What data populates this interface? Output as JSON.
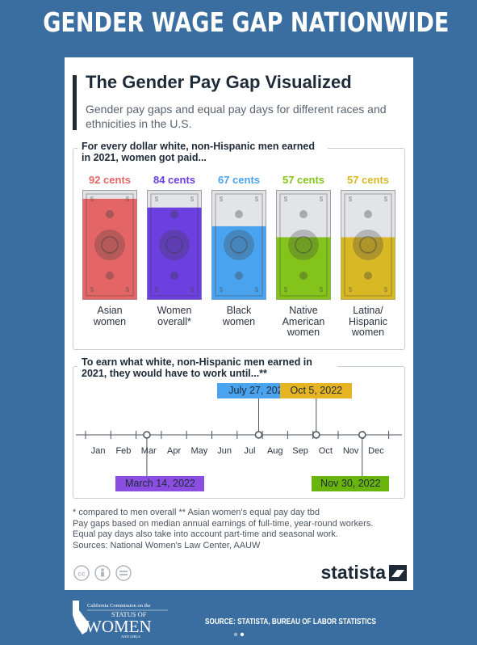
{
  "banner": "GENDER WAGE GAP NATIONWIDE",
  "card": {
    "title": "The Gender Pay Gap Visualized",
    "subtitle": "Gender pay gaps and equal pay days for different races and ethnicities in the U.S.",
    "section1_heading": "For every dollar white, non-Hispanic men earned in 2021, women got paid...",
    "section2_heading": "To earn what white, non-Hispanic men earned in 2021, they would have to work until...**",
    "footnotes": [
      "* compared to men overall   ** Asian women's equal pay day tbd",
      "Pay gaps based on median annual earnings of full-time, year-round workers.",
      "Equal pay days also take into account part-time and seasonal work.",
      "Sources: National Women's Law Center, AAUW"
    ],
    "brand": "statista"
  },
  "footer": {
    "org_line1": "California Commission on the",
    "org_line2": "STATUS OF",
    "org_line3": "WOMEN",
    "org_line4": "AND GIRLS",
    "source": "SOURCE: STATISTA, BUREAU OF LABOR STATISTICS"
  },
  "colors": {
    "background": "#3a6ea0",
    "asian": "#e36565",
    "overall": "#6b3fe0",
    "black": "#4aa3ee",
    "native": "#84c41a",
    "latina": "#d8b824"
  },
  "chart_data": [
    {
      "type": "bar",
      "categories": [
        "Asian women",
        "Women overall*",
        "Black women",
        "Native American women",
        "Latina/ Hispanic women"
      ],
      "category_lines": [
        [
          "Asian",
          "women"
        ],
        [
          "Women",
          "overall*"
        ],
        [
          "Black",
          "women"
        ],
        [
          "Native",
          "American",
          "women"
        ],
        [
          "Latina/",
          "Hispanic",
          "women"
        ]
      ],
      "values": [
        92,
        84,
        67,
        57,
        57
      ],
      "value_labels": [
        "92 cents",
        "84 cents",
        "67 cents",
        "57 cents",
        "57 cents"
      ],
      "colors": [
        "#e36565",
        "#6b3fe0",
        "#4aa3ee",
        "#84c41a",
        "#d8b824"
      ],
      "ylim": [
        0,
        100
      ]
    },
    {
      "type": "scatter",
      "xlabels": [
        "Jan",
        "Feb",
        "Mar",
        "Apr",
        "May",
        "Jun",
        "Jul",
        "Aug",
        "Sep",
        "Oct",
        "Nov",
        "Dec"
      ],
      "points": [
        {
          "label": "March 14, 2022",
          "month": 3,
          "day": 14,
          "color": "#8a4ee0",
          "position": "below"
        },
        {
          "label": "July 27, 2022",
          "month": 7,
          "day": 27,
          "color": "#4aa3ee",
          "position": "above"
        },
        {
          "label": "Oct 5, 2022",
          "month": 10,
          "day": 5,
          "color": "#e6b422",
          "position": "above"
        },
        {
          "label": "Nov 30, 2022",
          "month": 11,
          "day": 30,
          "color": "#6ab40e",
          "position": "below"
        }
      ]
    }
  ]
}
